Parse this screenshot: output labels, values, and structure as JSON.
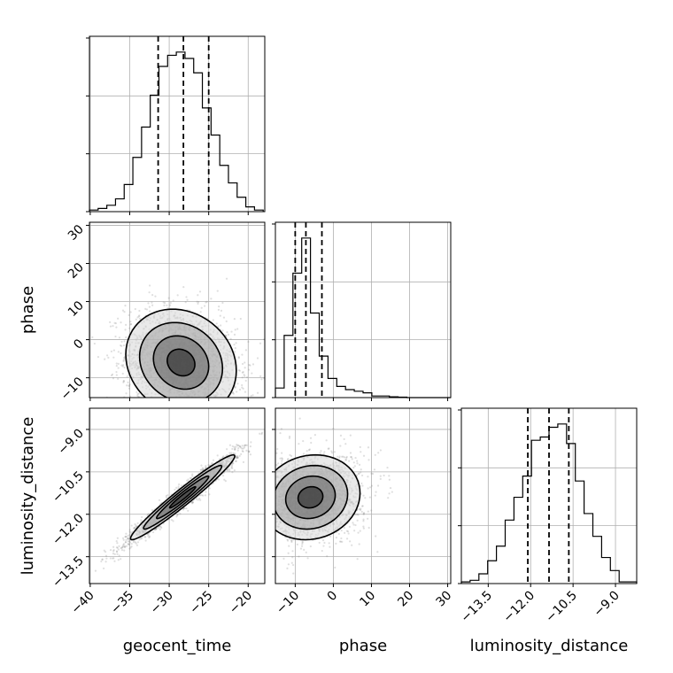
{
  "chart_data": {
    "type": "corner",
    "parameters": [
      "geocent_time",
      "phase",
      "luminosity_distance"
    ],
    "ranges": {
      "geocent_time": [
        -40.1,
        -17.9
      ],
      "phase": [
        -15.2,
        30.8
      ],
      "luminosity_distance": [
        -14.45,
        -8.25
      ]
    },
    "ticks": {
      "geocent_time": [
        -40,
        -35,
        -30,
        -25,
        -20
      ],
      "phase": [
        -10,
        0,
        10,
        20,
        30
      ],
      "luminosity_distance": [
        -13.5,
        -12.0,
        -10.5,
        -9.0
      ]
    },
    "tick_labels": {
      "geocent_time": [
        "−40",
        "−35",
        "−30",
        "−25",
        "−20"
      ],
      "phase": [
        "−10",
        "0",
        "10",
        "20",
        "30"
      ],
      "luminosity_distance": [
        "−13.5",
        "−12.0",
        "−10.5",
        "−9.0"
      ]
    },
    "quantiles": {
      "geocent_time": [
        -31.4,
        -28.2,
        -25.0
      ],
      "phase": [
        -10.0,
        -7.2,
        -3.0
      ],
      "luminosity_distance": [
        -12.1,
        -11.35,
        -10.65
      ]
    },
    "histograms": {
      "geocent_time": {
        "bin_edges": [
          -40.1,
          -39.0,
          -37.9,
          -36.8,
          -35.7,
          -34.6,
          -33.5,
          -32.4,
          -31.3,
          -30.2,
          -29.1,
          -28.0,
          -26.9,
          -25.8,
          -24.7,
          -23.6,
          -22.5,
          -21.4,
          -20.3,
          -19.2,
          -18.1
        ],
        "counts": [
          0.01,
          0.02,
          0.04,
          0.08,
          0.17,
          0.34,
          0.53,
          0.73,
          0.91,
          0.98,
          1.0,
          0.96,
          0.87,
          0.65,
          0.48,
          0.29,
          0.18,
          0.09,
          0.03,
          0.01
        ]
      },
      "phase": {
        "bin_edges": [
          -15.2,
          -12.9,
          -10.6,
          -8.3,
          -6.0,
          -3.7,
          -1.4,
          0.9,
          3.2,
          5.5,
          7.8,
          10.1,
          12.4,
          14.7,
          17.0,
          19.3,
          21.6,
          23.9,
          26.2,
          28.5,
          30.8
        ],
        "counts": [
          0.06,
          0.39,
          0.78,
          1.0,
          0.53,
          0.26,
          0.12,
          0.07,
          0.05,
          0.04,
          0.03,
          0.01,
          0.01,
          0.005,
          0.003,
          0,
          0,
          0,
          0,
          0
        ]
      },
      "luminosity_distance": {
        "bin_edges": [
          -14.45,
          -14.14,
          -13.83,
          -13.52,
          -13.21,
          -12.9,
          -12.59,
          -12.28,
          -11.97,
          -11.66,
          -11.35,
          -11.04,
          -10.73,
          -10.42,
          -10.11,
          -9.8,
          -9.49,
          -9.18,
          -8.87,
          -8.56,
          -8.25
        ],
        "counts": [
          0.01,
          0.02,
          0.06,
          0.14,
          0.23,
          0.39,
          0.53,
          0.66,
          0.88,
          0.9,
          0.96,
          0.98,
          0.86,
          0.63,
          0.43,
          0.29,
          0.16,
          0.08,
          0.01,
          0.01
        ]
      }
    },
    "correlations": {
      "geocent_time|phase": {
        "mean_x": -28.5,
        "sd_x": 3.5,
        "mean_y": -6.0,
        "sd_y": 7.0,
        "rho": -0.15
      },
      "geocent_time|luminosity_distance": {
        "mean_x": -28.3,
        "sd_x": 3.3,
        "mean_y": -11.4,
        "sd_y": 0.75,
        "rho": 0.97
      },
      "phase|luminosity_distance": {
        "mean_x": -6.0,
        "sd_x": 6.5,
        "mean_y": -11.4,
        "sd_y": 0.75,
        "rho": 0.1
      }
    },
    "contour_levels": [
      "0.5σ",
      "1σ",
      "1.5σ",
      "2σ"
    ],
    "grid": true,
    "colors": {
      "line": "#000000",
      "points": "#7f7f7f",
      "grid": "#b0b0b0"
    }
  }
}
